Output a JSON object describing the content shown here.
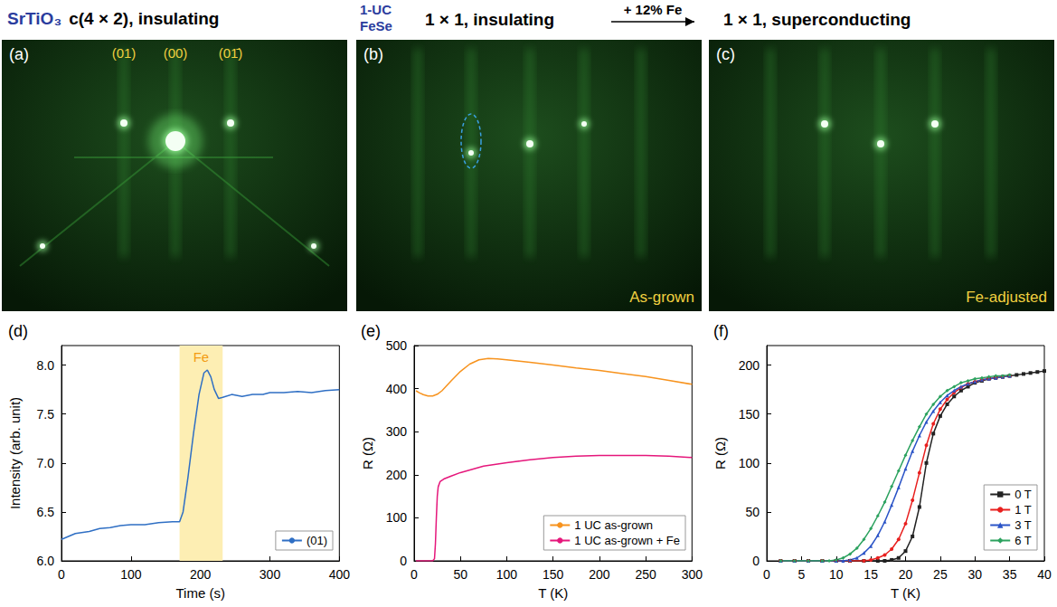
{
  "headers": [
    {
      "material": "SrTiO₃",
      "text": "c(4 × 2), insulating"
    },
    {
      "material": "1-UC FeSe",
      "text": "1 × 1, insulating"
    },
    {
      "text": "1 × 1, superconducting",
      "arrow_label": "+ 12% Fe"
    }
  ],
  "images": [
    {
      "panel": "(a)",
      "spot_labels": [
        "(01)",
        "(00)",
        "(01̄)"
      ]
    },
    {
      "panel": "(b)",
      "caption": "As-grown"
    },
    {
      "panel": "(c)",
      "caption": "Fe-adjusted"
    }
  ],
  "chart_data": [
    {
      "panel": "(d)",
      "type": "line",
      "x_label": "Time (s)",
      "y_label": "Intensity (arb. unit)",
      "xlim": [
        0,
        400
      ],
      "xticks": [
        0,
        100,
        200,
        300,
        400
      ],
      "ylim": [
        6.0,
        8.2
      ],
      "yticks": [
        {
          "value": 6.0,
          "label": "6.0"
        },
        {
          "value": 6.5,
          "label": "6.5"
        },
        {
          "value": 7.0,
          "label": "7.0"
        },
        {
          "value": 7.5,
          "label": "7.5"
        },
        {
          "value": 8.0,
          "label": "8.0"
        }
      ],
      "grid": false,
      "legend": "lower right",
      "shaded_region": {
        "x": [
          170,
          232
        ],
        "label": "Fe",
        "color": "#fdeeb3"
      },
      "series": [
        {
          "name": "(01)",
          "color": "#2f6fc4",
          "marker": "none",
          "x": [
            0,
            20,
            40,
            55,
            70,
            85,
            100,
            120,
            140,
            160,
            170,
            175,
            182,
            190,
            198,
            205,
            210,
            215,
            220,
            226,
            232,
            245,
            260,
            275,
            290,
            300,
            320,
            340,
            360,
            380,
            400
          ],
          "values": [
            6.22,
            6.28,
            6.3,
            6.33,
            6.34,
            6.36,
            6.37,
            6.37,
            6.39,
            6.4,
            6.4,
            6.5,
            6.85,
            7.3,
            7.7,
            7.92,
            7.95,
            7.88,
            7.75,
            7.66,
            7.67,
            7.7,
            7.68,
            7.7,
            7.7,
            7.72,
            7.72,
            7.73,
            7.72,
            7.74,
            7.75
          ]
        }
      ]
    },
    {
      "panel": "(e)",
      "type": "line",
      "x_label": "T (K)",
      "y_label": "R (Ω)",
      "xlim": [
        0,
        300
      ],
      "xticks": [
        0,
        50,
        100,
        150,
        200,
        250,
        300
      ],
      "ylim": [
        0,
        500
      ],
      "yticks": [
        0,
        100,
        200,
        300,
        400,
        500
      ],
      "grid": false,
      "legend": "lower right",
      "series": [
        {
          "name": "1 UC as-grown",
          "color": "#f7931e",
          "marker": "none",
          "x": [
            2,
            6,
            10,
            15,
            20,
            25,
            30,
            40,
            50,
            60,
            70,
            80,
            90,
            100,
            125,
            150,
            175,
            200,
            225,
            250,
            275,
            300
          ],
          "values": [
            395,
            390,
            386,
            383,
            383,
            387,
            395,
            418,
            440,
            457,
            467,
            470,
            469,
            467,
            461,
            455,
            448,
            442,
            435,
            428,
            419,
            410
          ]
        },
        {
          "name": "1 UC as-grown + Fe",
          "color": "#e5177b",
          "marker": "none",
          "x": [
            2,
            10,
            20,
            22,
            23,
            24,
            25,
            26,
            28,
            32,
            40,
            50,
            75,
            100,
            125,
            150,
            175,
            200,
            225,
            250,
            275,
            300
          ],
          "values": [
            0,
            0,
            0,
            5,
            40,
            100,
            150,
            172,
            184,
            190,
            197,
            205,
            220,
            228,
            235,
            240,
            243,
            245,
            245,
            245,
            243,
            240
          ]
        }
      ]
    },
    {
      "panel": "(f)",
      "type": "line",
      "x_label": "T (K)",
      "y_label": "R (Ω)",
      "xlim": [
        0,
        40
      ],
      "xticks": [
        0,
        5,
        10,
        15,
        20,
        25,
        30,
        35,
        40
      ],
      "ylim": [
        0,
        220
      ],
      "yticks": [
        0,
        50,
        100,
        150,
        200
      ],
      "grid": false,
      "legend": "lower right",
      "series": [
        {
          "name": "0 T",
          "color": "#222222",
          "marker": "square",
          "x": [
            2,
            4,
            6,
            8,
            10,
            12,
            14,
            16,
            17,
            18,
            19,
            20,
            21,
            22,
            23,
            24,
            25,
            26,
            27,
            28,
            29,
            30,
            31,
            32,
            33,
            34,
            35,
            36,
            37,
            38,
            39,
            40
          ],
          "values": [
            0,
            0,
            0,
            0,
            0,
            0,
            0,
            0,
            0,
            1,
            3,
            10,
            25,
            55,
            100,
            130,
            148,
            160,
            168,
            174,
            178,
            182,
            184,
            186,
            187,
            188,
            189,
            190,
            191,
            192,
            193,
            194
          ]
        },
        {
          "name": "1 T",
          "color": "#e8201f",
          "marker": "circle",
          "x": [
            2,
            4,
            6,
            8,
            10,
            12,
            14,
            15,
            16,
            17,
            18,
            19,
            20,
            21,
            22,
            23,
            24,
            25,
            26,
            27,
            28,
            29,
            30,
            31,
            32,
            33,
            34,
            35
          ],
          "values": [
            0,
            0,
            0,
            0,
            0,
            0,
            0,
            1,
            3,
            6,
            12,
            22,
            38,
            62,
            90,
            118,
            140,
            155,
            165,
            172,
            177,
            181,
            183,
            185,
            186,
            187,
            188,
            189
          ]
        },
        {
          "name": "3 T",
          "color": "#2b54c7",
          "marker": "triangle",
          "x": [
            2,
            4,
            6,
            8,
            10,
            11,
            12,
            13,
            14,
            15,
            16,
            17,
            18,
            19,
            20,
            21,
            22,
            23,
            24,
            25,
            26,
            27,
            28,
            29,
            30,
            31,
            32,
            33,
            34,
            35
          ],
          "values": [
            0,
            0,
            0,
            0,
            0,
            0,
            1,
            3,
            8,
            15,
            26,
            40,
            57,
            75,
            94,
            112,
            128,
            142,
            153,
            162,
            169,
            174,
            178,
            181,
            183,
            185,
            186,
            187,
            188,
            189
          ]
        },
        {
          "name": "6 T",
          "color": "#2ca25f",
          "marker": "diamond",
          "x": [
            2,
            4,
            6,
            8,
            9,
            10,
            11,
            12,
            13,
            14,
            15,
            16,
            17,
            18,
            19,
            20,
            21,
            22,
            23,
            24,
            25,
            26,
            27,
            28,
            29,
            30,
            31,
            32,
            33,
            34,
            35
          ],
          "values": [
            0,
            0,
            0,
            0,
            0,
            1,
            3,
            7,
            13,
            22,
            33,
            46,
            60,
            76,
            92,
            108,
            123,
            137,
            150,
            160,
            168,
            174,
            178,
            182,
            184,
            186,
            187,
            188,
            189,
            189,
            190
          ]
        }
      ]
    }
  ]
}
